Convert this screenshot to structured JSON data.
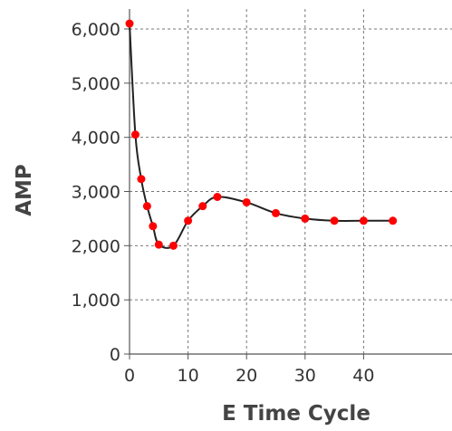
{
  "chart_data": {
    "type": "line",
    "title": "",
    "xlabel": "E Time Cycle",
    "ylabel": "AMP",
    "x": [
      0,
      1,
      2,
      3,
      4,
      5,
      7.5,
      10,
      12.5,
      15,
      20,
      25,
      30,
      35,
      40,
      45
    ],
    "y": [
      6100,
      4050,
      3230,
      2730,
      2360,
      2020,
      2000,
      2460,
      2730,
      2900,
      2800,
      2600,
      2500,
      2460,
      2460,
      2460
    ],
    "xlim": [
      0,
      45
    ],
    "ylim": [
      0,
      6300
    ],
    "xticks": [
      0,
      10,
      20,
      30,
      40
    ],
    "xtick_labels": [
      "0",
      "10",
      "20",
      "30",
      "40"
    ],
    "yticks": [
      0,
      1000,
      2000,
      3000,
      4000,
      5000,
      6000
    ],
    "ytick_labels": [
      "0",
      "1,000",
      "2,000",
      "3,000",
      "4,000",
      "5,000",
      "6,000"
    ],
    "grid": true,
    "line_color": "#222222",
    "marker_color": "#ff0000",
    "grid_color": "#777777"
  }
}
